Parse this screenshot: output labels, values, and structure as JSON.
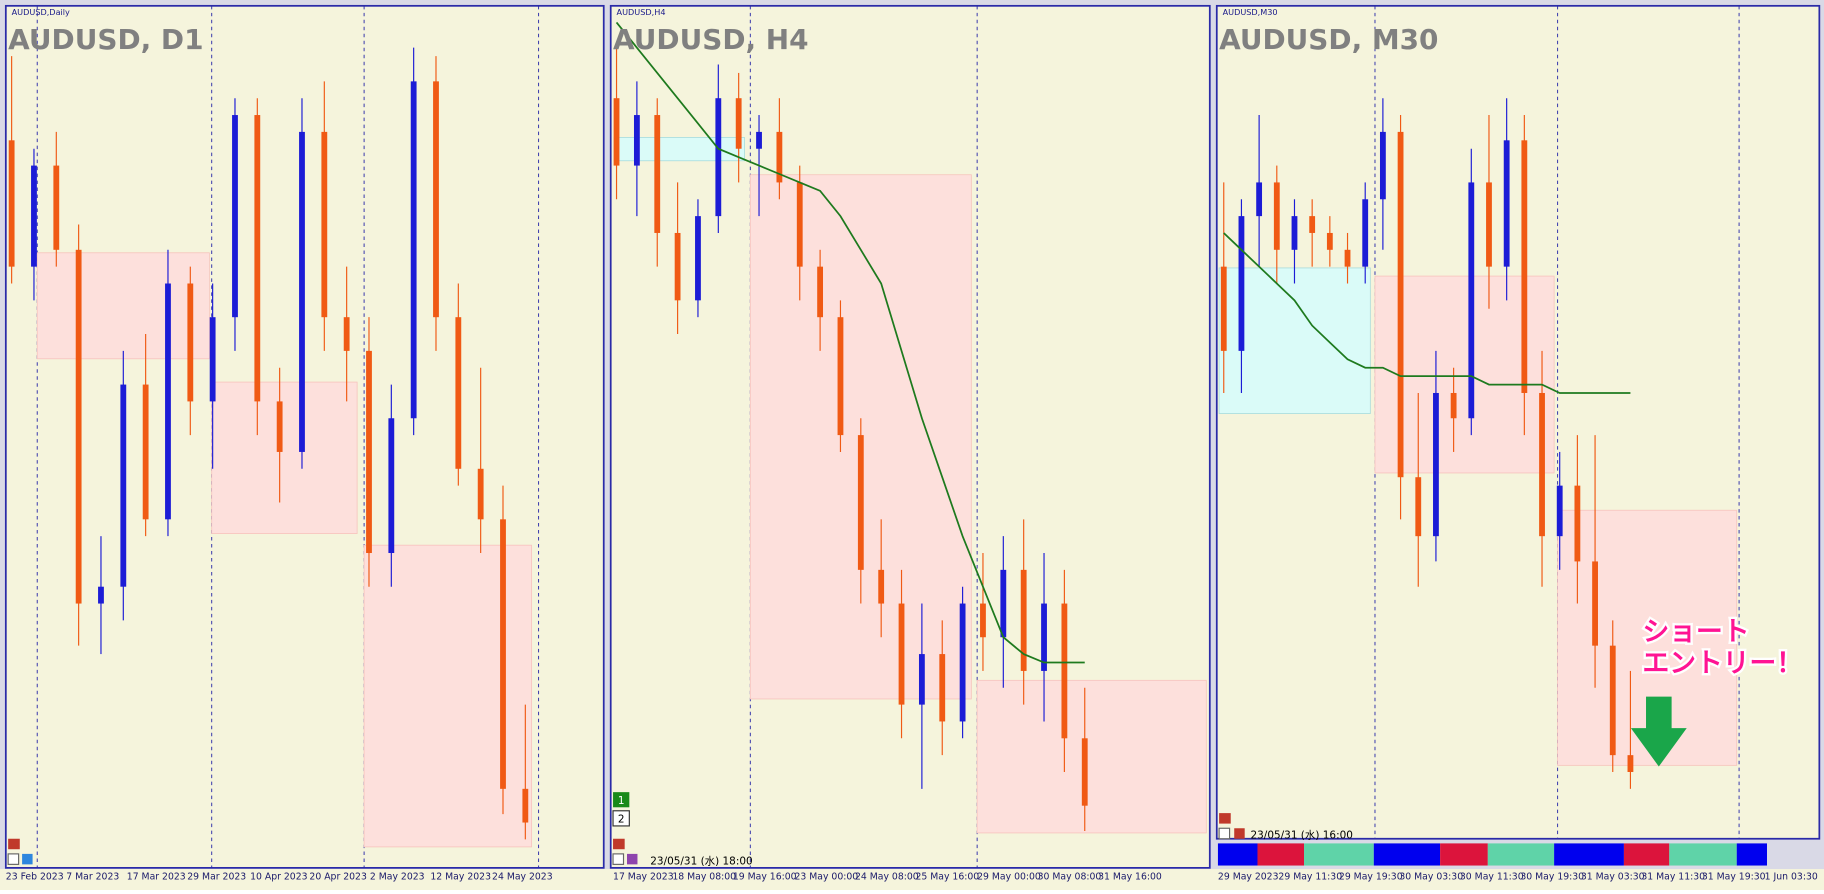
{
  "panels": [
    {
      "symbol_label": "AUDUSD,Daily",
      "title": "AUDUSD, D1",
      "x_labels": [
        "23 Feb 2023",
        "7 Mar 2023",
        "17 Mar 2023",
        "29 Mar 2023",
        "10 Apr 2023",
        "20 Apr 2023",
        "2 May 2023",
        "12 May 2023",
        "24 May 2023"
      ],
      "candles": [
        [
          85,
          95,
          68,
          70
        ],
        [
          70,
          84,
          66,
          82
        ],
        [
          82,
          86,
          70,
          72
        ],
        [
          72,
          75,
          25,
          30
        ],
        [
          30,
          38,
          24,
          32
        ],
        [
          32,
          60,
          28,
          56
        ],
        [
          56,
          62,
          38,
          40
        ],
        [
          40,
          72,
          38,
          68
        ],
        [
          68,
          70,
          50,
          54
        ],
        [
          54,
          68,
          46,
          64
        ],
        [
          64,
          90,
          60,
          88
        ],
        [
          88,
          90,
          50,
          54
        ],
        [
          54,
          58,
          42,
          48
        ],
        [
          48,
          90,
          46,
          86
        ],
        [
          86,
          92,
          60,
          64
        ],
        [
          64,
          70,
          54,
          60
        ],
        [
          60,
          64,
          32,
          36
        ],
        [
          36,
          56,
          32,
          52
        ],
        [
          52,
          96,
          50,
          92
        ],
        [
          92,
          95,
          60,
          64
        ],
        [
          64,
          68,
          44,
          46
        ],
        [
          46,
          58,
          36,
          40
        ],
        [
          40,
          44,
          5,
          8
        ],
        [
          8,
          18,
          2,
          4
        ]
      ]
    },
    {
      "symbol_label": "AUDUSD,H4",
      "title": "AUDUSD, H4",
      "x_labels": [
        "17 May 2023",
        "18 May 08:00",
        "19 May 16:00",
        "23 May 00:00",
        "24 May 08:00",
        "25 May 16:00",
        "29 May 00:00",
        "30 May 08:00",
        "31 May 16:00"
      ],
      "timestamp": "23/05/31 (水) 18:00",
      "buttons": [
        "1",
        "2"
      ],
      "candles": [
        [
          90,
          96,
          78,
          82
        ],
        [
          82,
          92,
          76,
          88
        ],
        [
          88,
          90,
          70,
          74
        ],
        [
          74,
          80,
          62,
          66
        ],
        [
          66,
          78,
          64,
          76
        ],
        [
          76,
          94,
          74,
          90
        ],
        [
          90,
          93,
          80,
          84
        ],
        [
          84,
          88,
          76,
          86
        ],
        [
          86,
          90,
          78,
          80
        ],
        [
          80,
          82,
          66,
          70
        ],
        [
          70,
          72,
          60,
          64
        ],
        [
          64,
          66,
          48,
          50
        ],
        [
          50,
          52,
          30,
          34
        ],
        [
          34,
          40,
          26,
          30
        ],
        [
          30,
          34,
          14,
          18
        ],
        [
          18,
          30,
          8,
          24
        ],
        [
          24,
          28,
          12,
          16
        ],
        [
          16,
          32,
          14,
          30
        ],
        [
          30,
          36,
          22,
          26
        ],
        [
          26,
          38,
          20,
          34
        ],
        [
          34,
          40,
          18,
          22
        ],
        [
          22,
          36,
          16,
          30
        ],
        [
          30,
          34,
          10,
          14
        ],
        [
          14,
          20,
          3,
          6
        ]
      ],
      "ma": [
        99,
        96,
        93,
        90,
        87,
        84,
        83,
        82,
        81,
        80,
        79,
        76,
        72,
        68,
        60,
        52,
        45,
        38,
        32,
        26,
        24,
        23,
        23,
        23
      ]
    },
    {
      "symbol_label": "AUDUSD,M30",
      "title": "AUDUSD, M30",
      "x_labels": [
        "29 May 2023",
        "29 May 11:30",
        "29 May 19:30",
        "30 May 03:30",
        "30 May 11:30",
        "30 May 19:30",
        "31 May 03:30",
        "31 May 11:30",
        "31 May 19:30",
        "1 Jun 03:30"
      ],
      "timestamp": "23/05/31 (水) 16:00",
      "annotation": [
        "ショート",
        "エントリー！"
      ],
      "candles": [
        [
          70,
          80,
          55,
          60
        ],
        [
          60,
          78,
          55,
          76
        ],
        [
          76,
          88,
          70,
          80
        ],
        [
          80,
          82,
          68,
          72
        ],
        [
          72,
          78,
          68,
          76
        ],
        [
          76,
          78,
          70,
          74
        ],
        [
          74,
          76,
          70,
          72
        ],
        [
          72,
          74,
          68,
          70
        ],
        [
          70,
          80,
          68,
          78
        ],
        [
          78,
          90,
          72,
          86
        ],
        [
          86,
          88,
          40,
          45
        ],
        [
          45,
          55,
          32,
          38
        ],
        [
          38,
          60,
          35,
          55
        ],
        [
          55,
          58,
          48,
          52
        ],
        [
          52,
          84,
          50,
          80
        ],
        [
          80,
          88,
          65,
          70
        ],
        [
          70,
          90,
          66,
          85
        ],
        [
          85,
          88,
          50,
          55
        ],
        [
          55,
          60,
          32,
          38
        ],
        [
          38,
          48,
          34,
          44
        ],
        [
          44,
          50,
          30,
          35
        ],
        [
          35,
          50,
          20,
          25
        ],
        [
          25,
          28,
          10,
          12
        ],
        [
          12,
          22,
          8,
          10
        ]
      ],
      "ma": [
        74,
        72,
        70,
        68,
        66,
        63,
        61,
        59,
        58,
        58,
        57,
        57,
        57,
        57,
        57,
        56,
        56,
        56,
        56,
        55,
        55,
        55,
        55,
        55
      ]
    }
  ]
}
